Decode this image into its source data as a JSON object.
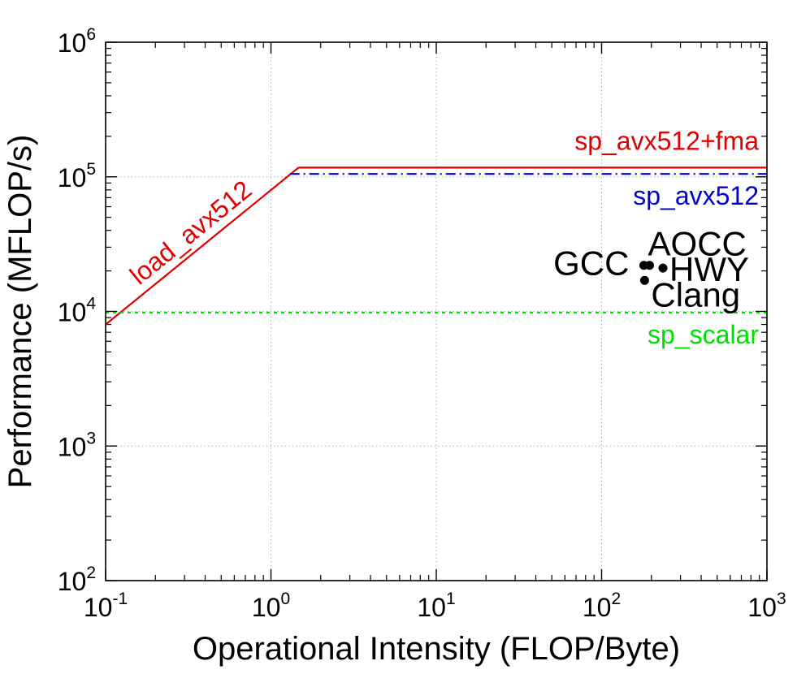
{
  "chart_data": {
    "type": "line",
    "xlabel": "Operational Intensity (FLOP/Byte)",
    "ylabel": "Performance (MFLOP/s)",
    "xscale": "log",
    "yscale": "log",
    "xlim": [
      0.1,
      1000
    ],
    "ylim": [
      100,
      1000000
    ],
    "grid": true,
    "x_ticks": [
      {
        "base": "10",
        "exp": "-1",
        "value": 0.1
      },
      {
        "base": "10",
        "exp": "0",
        "value": 1
      },
      {
        "base": "10",
        "exp": "1",
        "value": 10
      },
      {
        "base": "10",
        "exp": "2",
        "value": 100
      },
      {
        "base": "10",
        "exp": "3",
        "value": 1000
      }
    ],
    "y_ticks": [
      {
        "base": "10",
        "exp": "2",
        "value": 100
      },
      {
        "base": "10",
        "exp": "3",
        "value": 1000
      },
      {
        "base": "10",
        "exp": "4",
        "value": 10000
      },
      {
        "base": "10",
        "exp": "5",
        "value": 100000
      },
      {
        "base": "10",
        "exp": "6",
        "value": 1000000
      }
    ],
    "ceilings": [
      {
        "name": "sp_avx512+fma",
        "color": "#e00000",
        "style": "solid",
        "x": [
          1.47,
          1000
        ],
        "y": [
          117000,
          117000
        ]
      },
      {
        "name": "sp_avx512",
        "color": "#0000d0",
        "style": "dashdot",
        "x": [
          1.3,
          1000
        ],
        "y": [
          105000,
          105000
        ]
      },
      {
        "name": "sp_scalar",
        "color": "#00e000",
        "style": "dotted",
        "x": [
          0.1,
          1000
        ],
        "y": [
          9800,
          9800
        ]
      }
    ],
    "bandwidth": [
      {
        "name": "load_avx512",
        "color": "#e00000",
        "style": "solid",
        "x": [
          0.1,
          1.47
        ],
        "y": [
          8000,
          117000
        ]
      }
    ],
    "points": [
      {
        "name": "GCC",
        "x": 180,
        "y": 22000
      },
      {
        "name": "AOCC",
        "x": 195,
        "y": 22000
      },
      {
        "name": "HWY",
        "x": 235,
        "y": 21000
      },
      {
        "name": "Clang",
        "x": 182,
        "y": 17000
      }
    ]
  }
}
